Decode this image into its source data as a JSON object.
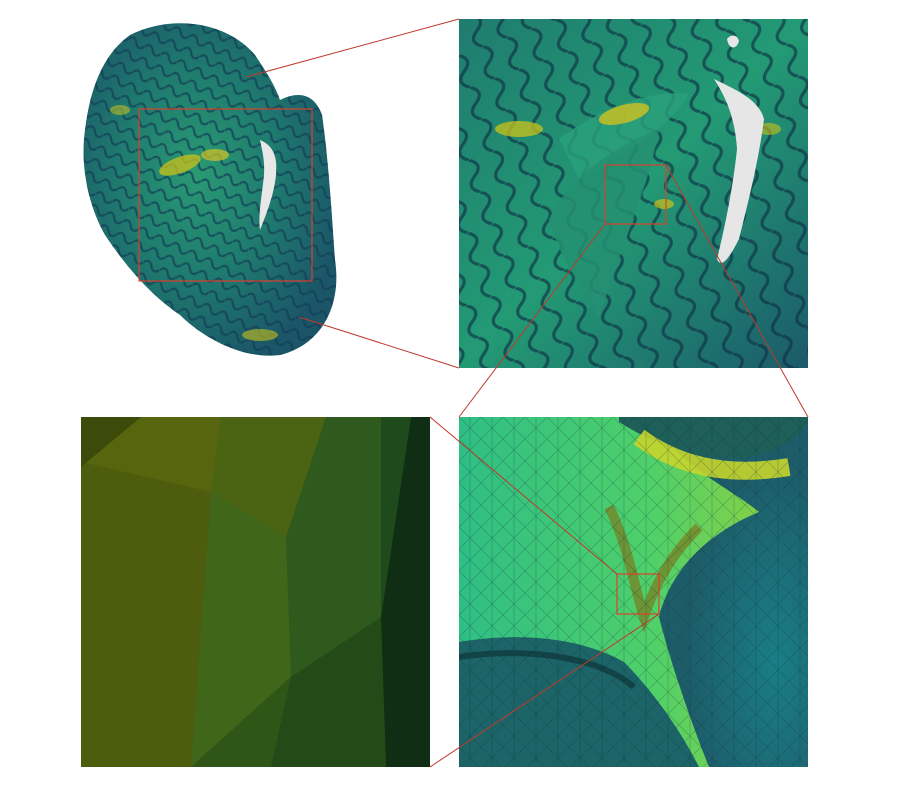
{
  "figure": {
    "description_colors": {
      "highlight_box": "#d9412f",
      "connector_line": "#c0392b",
      "surface_low": "#1f4f6b",
      "surface_mid": "#1f9a6e",
      "surface_high": "#c9c21a",
      "cut_surface": "#e8e8e8"
    },
    "panels": [
      {
        "id": "overview",
        "content": "3d-cortical-surface-overview"
      },
      {
        "id": "zoom1",
        "content": "cortical-folds-magnified"
      },
      {
        "id": "zoom2",
        "content": "triangle-mesh-magnified"
      },
      {
        "id": "zoom3",
        "content": "mesh-facets-extreme-close-up"
      }
    ]
  }
}
